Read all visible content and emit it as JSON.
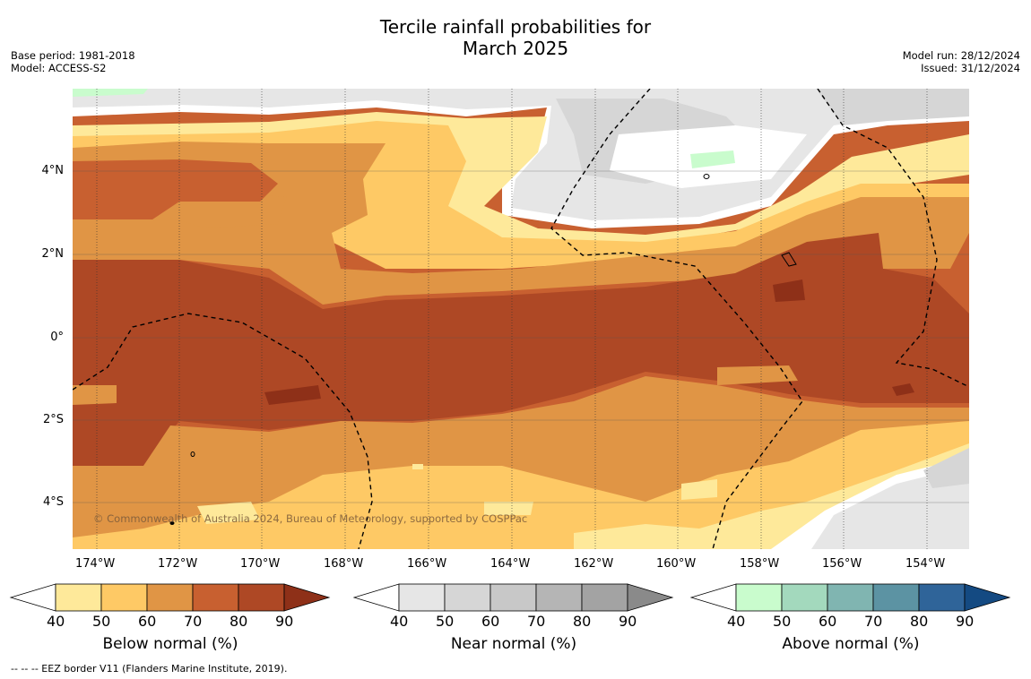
{
  "title_line1": "Tercile rainfall probabilities for",
  "title_line2": "March 2025",
  "meta_left": [
    "Base period: 1981-2018",
    "Model: ACCESS-S2"
  ],
  "meta_right": [
    "Model run: 28/12/2024",
    "Issued: 31/12/2024"
  ],
  "x_ticks": [
    "174°W",
    "172°W",
    "170°W",
    "168°W",
    "166°W",
    "164°W",
    "162°W",
    "160°W",
    "158°W",
    "156°W",
    "154°W"
  ],
  "y_ticks": [
    "4°N",
    "2°N",
    "0°",
    "2°S",
    "4°S"
  ],
  "credit": "© Commonwealth of Australia 2024, Bureau of Meteorology, supported by COSPPac",
  "footnote": "--  --  -- EEZ border V11 (Flanders Marine Institute, 2019).",
  "colorbars": [
    {
      "label": "Below normal (%)",
      "ticks": [
        "40",
        "50",
        "60",
        "70",
        "80",
        "90"
      ],
      "colors": [
        "#ffffff",
        "#fee99a",
        "#fec965",
        "#e09545",
        "#c86030",
        "#ae4825",
        "#8e3018"
      ]
    },
    {
      "label": "Near normal (%)",
      "ticks": [
        "40",
        "50",
        "60",
        "70",
        "80",
        "90"
      ],
      "colors": [
        "#ffffff",
        "#e6e6e6",
        "#d6d6d6",
        "#c8c8c8",
        "#b5b5b5",
        "#a3a3a3",
        "#8a8a8a"
      ]
    },
    {
      "label": "Above normal (%)",
      "ticks": [
        "40",
        "50",
        "60",
        "70",
        "80",
        "90"
      ],
      "colors": [
        "#ffffff",
        "#c9fccd",
        "#a3d9bd",
        "#80b5b1",
        "#5c93a3",
        "#2f6499",
        "#144a82"
      ]
    }
  ]
}
